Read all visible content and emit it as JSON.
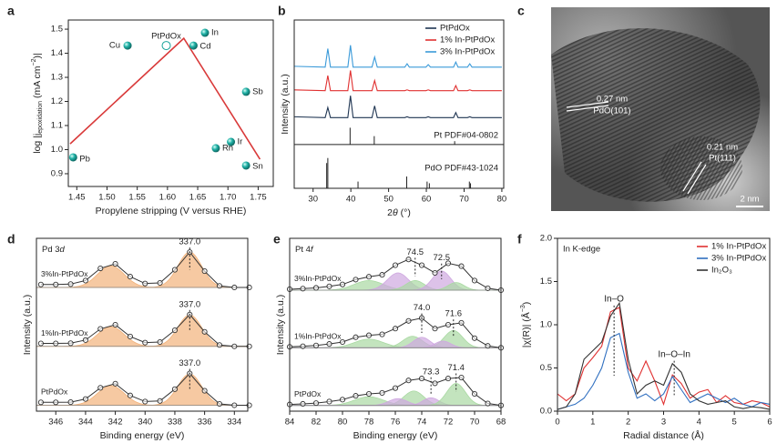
{
  "chart_data": [
    {
      "type": "scatter",
      "panel_label": "a",
      "xlabel": "Propylene stripping (V versus RHE)",
      "ylabel": [
        "log |j",
        "epoxidation",
        " (mA cm",
        "−2",
        ")|"
      ],
      "xlim": [
        1.436,
        1.775
      ],
      "ylim": [
        0.847,
        1.538
      ],
      "xticks": [
        1.45,
        {
          "value": 1.5,
          "label": "1.50"
        },
        1.55,
        {
          "value": 1.6,
          "label": "1.60"
        },
        1.65,
        {
          "value": 1.7,
          "label": "1.70"
        },
        1.75
      ],
      "yticks": [
        0.9,
        {
          "value": 1,
          "label": "1.0"
        },
        1.1,
        1.2,
        1.3,
        1.4,
        1.5
      ],
      "points": [
        {
          "label": "Pb",
          "x": 1.444,
          "y": 0.968,
          "marker": "filled"
        },
        {
          "label": "Cu",
          "x": 1.534,
          "y": 1.432,
          "marker": "filled"
        },
        {
          "label": "PtPdOx",
          "x": 1.598,
          "y": 1.432,
          "marker": "open"
        },
        {
          "label": "Cd",
          "x": 1.643,
          "y": 1.432,
          "marker": "filled"
        },
        {
          "label": "In",
          "x": 1.662,
          "y": 1.485,
          "marker": "filled"
        },
        {
          "label": "Rh",
          "x": 1.68,
          "y": 1.006,
          "marker": "filled"
        },
        {
          "label": "Ir",
          "x": 1.705,
          "y": 1.032,
          "marker": "filled"
        },
        {
          "label": "Sb",
          "x": 1.73,
          "y": 1.24,
          "marker": "filled"
        },
        {
          "label": "Sn",
          "x": 1.73,
          "y": 0.934,
          "marker": "filled"
        }
      ],
      "point_color": "#17a39a",
      "trend": {
        "x": [
          1.439,
          1.627,
          1.753
        ],
        "values": [
          1.024,
          1.462,
          0.96
        ],
        "color": "#d93a3a"
      }
    },
    {
      "type": "line",
      "panel_label": "b",
      "xlabel": [
        "2",
        "θ",
        " (°)"
      ],
      "ylabel": "Intensity (a.u.)",
      "xlim": [
        25,
        80.5
      ],
      "ylim": [
        0,
        10
      ],
      "xticks": [
        30,
        40,
        50,
        60,
        70,
        80
      ],
      "legend": "upper right",
      "x": [
        25,
        33.2,
        33.9,
        34.6,
        39.2,
        39.9,
        40.6,
        45.6,
        46.3,
        47,
        54.3,
        54.9,
        55.5,
        59.9,
        60.5,
        61.1,
        67.2,
        67.8,
        68.4,
        70.9,
        71.5,
        72.1,
        80
      ],
      "series": [
        {
          "name": "PtPdOx",
          "color": "#1f3552",
          "values": [
            4.25,
            4.2,
            4.8,
            4.2,
            4.2,
            5.5,
            4.2,
            4.2,
            4.9,
            4.2,
            4.2,
            4.25,
            4.2,
            4.2,
            4.25,
            4.2,
            4.2,
            4.5,
            4.2,
            4.2,
            4.25,
            4.2,
            4.2
          ]
        },
        {
          "name": "1% In-PtPdOx",
          "color": "#e03030",
          "values": [
            5.85,
            5.8,
            6.7,
            5.8,
            5.8,
            7.0,
            5.8,
            5.8,
            6.4,
            5.8,
            5.8,
            5.85,
            5.8,
            5.8,
            5.85,
            5.8,
            5.8,
            6.1,
            5.8,
            5.8,
            5.85,
            5.8,
            5.8
          ]
        },
        {
          "name": "3% In-PtPdOx",
          "color": "#3a9ad9",
          "values": [
            7.25,
            7.2,
            8.3,
            7.2,
            7.2,
            8.5,
            7.2,
            7.2,
            7.8,
            7.2,
            7.2,
            7.4,
            7.2,
            7.2,
            7.35,
            7.2,
            7.2,
            7.5,
            7.2,
            7.2,
            7.4,
            7.2,
            7.2
          ]
        }
      ],
      "references": [
        {
          "name": "Pt PDF#04-0802",
          "baseline": 2.6,
          "x": [
            39.8,
            46.2,
            67.5
          ],
          "values": [
            3.6,
            3.1,
            2.8
          ]
        },
        {
          "name": "PdO PDF#43-1024",
          "baseline": 0,
          "x": [
            33.6,
            33.9,
            41.9,
            54.8,
            60.2,
            60.8,
            71.4,
            71.7
          ],
          "values": [
            1.5,
            1.8,
            0.4,
            0.7,
            0.4,
            0.3,
            0.4,
            0.3
          ]
        }
      ]
    },
    {
      "type": "image",
      "panel_label": "c",
      "annotations": [
        "0.27 nm",
        "PdO(101)",
        "0.21 nm",
        "Pt(111)",
        "2 nm"
      ]
    },
    {
      "type": "spectrum",
      "panel_label": "d",
      "title": [
        "Pd 3",
        "d"
      ],
      "xlabel": "Binding energy (eV)",
      "ylabel": "Intensity (a.u.)",
      "xlim": [
        347.3,
        333.1
      ],
      "ylim": [
        0,
        8.8
      ],
      "xticks": [
        346,
        344,
        342,
        340,
        338,
        336,
        334
      ],
      "x": [
        347,
        346,
        345,
        344,
        343,
        342,
        341,
        340,
        339,
        338,
        337,
        336,
        335,
        334,
        333
      ],
      "series": [
        {
          "name": "3%In-PtPdOx",
          "color": "#333333",
          "baseline": 6.3,
          "values": [
            6.45,
            6.45,
            6.47,
            6.65,
            7.27,
            7.5,
            6.85,
            6.5,
            6.53,
            7.2,
            8.1,
            7.13,
            6.38,
            6.3,
            6.3
          ],
          "components": [
            {
              "center": 342.3,
              "height": 1.1,
              "width": 0.9,
              "color": "#f2b27a"
            },
            {
              "center": 337.0,
              "height": 1.8,
              "width": 0.8,
              "color": "#f2b27a"
            }
          ],
          "peak_labels": [
            {
              "value": 337.0,
              "label": "337.0"
            }
          ]
        },
        {
          "name": "1%In-PtPdOx",
          "color": "#333333",
          "baseline": 3.3,
          "values": [
            3.45,
            3.45,
            3.46,
            3.62,
            4.19,
            4.4,
            3.8,
            3.49,
            3.52,
            4.12,
            4.92,
            4.04,
            3.37,
            3.3,
            3.3
          ],
          "components": [
            {
              "center": 342.3,
              "height": 1.0,
              "width": 0.9,
              "color": "#f2b27a"
            },
            {
              "center": 337.0,
              "height": 1.6,
              "width": 0.8,
              "color": "#f2b27a"
            }
          ],
          "peak_labels": [
            {
              "value": 337.0,
              "label": "337.0"
            }
          ]
        },
        {
          "name": "PtPdOx",
          "color": "#333333",
          "baseline": 0.3,
          "values": [
            0.45,
            0.45,
            0.46,
            0.62,
            1.19,
            1.4,
            0.8,
            0.49,
            0.52,
            1.12,
            1.92,
            1.04,
            0.37,
            0.3,
            0.3
          ],
          "components": [
            {
              "center": 342.3,
              "height": 1.0,
              "width": 0.9,
              "color": "#f2b27a"
            },
            {
              "center": 337.0,
              "height": 1.6,
              "width": 0.8,
              "color": "#f2b27a"
            }
          ],
          "peak_labels": [
            {
              "value": 337.0,
              "label": "337.0"
            }
          ]
        }
      ]
    },
    {
      "type": "spectrum",
      "panel_label": "e",
      "title": [
        "Pt 4",
        "f"
      ],
      "xlabel": "Binding energy (eV)",
      "ylabel": "Intensity (a.u.)",
      "xlim": [
        84,
        68
      ],
      "ylim": [
        0,
        9
      ],
      "xticks": [
        84,
        82,
        80,
        78,
        76,
        74,
        72,
        70,
        68
      ],
      "x": [
        84,
        83,
        82,
        81,
        80,
        79,
        78,
        77,
        76,
        75,
        74,
        73,
        72,
        71,
        70,
        69,
        68
      ],
      "series": [
        {
          "name": "3%In-PtPdOx",
          "color": "#333333",
          "baseline": 6.3,
          "values": [
            6.35,
            6.38,
            6.42,
            6.5,
            6.6,
            6.85,
            7.0,
            7.1,
            7.6,
            7.9,
            7.6,
            7.2,
            7.7,
            7.55,
            6.8,
            6.4,
            6.3
          ],
          "components": [
            {
              "center": 78.0,
              "height": 0.5,
              "width": 1.1,
              "color": "#a9d9a2"
            },
            {
              "center": 75.8,
              "height": 0.9,
              "width": 0.8,
              "color": "#cfa8e0"
            },
            {
              "center": 74.5,
              "height": 0.5,
              "width": 0.7,
              "color": "#a9d9a2"
            },
            {
              "center": 72.5,
              "height": 1.0,
              "width": 0.7,
              "color": "#cfa8e0"
            },
            {
              "center": 71.4,
              "height": 0.4,
              "width": 0.6,
              "color": "#a9d9a2"
            }
          ],
          "peak_labels": [
            {
              "value": 74.5,
              "label": "74.5"
            },
            {
              "value": 72.5,
              "label": "72.5"
            }
          ]
        },
        {
          "name": "1%In-PtPdOx",
          "color": "#333333",
          "baseline": 3.3,
          "values": [
            3.35,
            3.38,
            3.42,
            3.5,
            3.6,
            3.85,
            3.95,
            4.0,
            4.3,
            4.7,
            4.85,
            4.3,
            4.5,
            4.6,
            3.8,
            3.4,
            3.3
          ],
          "components": [
            {
              "center": 78.0,
              "height": 0.45,
              "width": 1.1,
              "color": "#a9d9a2"
            },
            {
              "center": 74.7,
              "height": 0.6,
              "width": 0.75,
              "color": "#a9d9a2"
            },
            {
              "center": 74.0,
              "height": 0.55,
              "width": 0.65,
              "color": "#cfa8e0"
            },
            {
              "center": 71.6,
              "height": 0.9,
              "width": 0.7,
              "color": "#a9d9a2"
            },
            {
              "center": 72.4,
              "height": 0.35,
              "width": 0.6,
              "color": "#cfa8e0"
            }
          ],
          "peak_labels": [
            {
              "value": 74.0,
              "label": "74.0"
            },
            {
              "value": 71.6,
              "label": "71.6"
            }
          ]
        },
        {
          "name": "PtPdOx",
          "color": "#333333",
          "baseline": 0.3,
          "values": [
            0.35,
            0.38,
            0.42,
            0.5,
            0.6,
            0.8,
            0.9,
            0.95,
            1.2,
            1.6,
            1.7,
            1.45,
            1.7,
            1.75,
            0.9,
            0.4,
            0.3
          ],
          "components": [
            {
              "center": 78.0,
              "height": 0.45,
              "width": 1.1,
              "color": "#a9d9a2"
            },
            {
              "center": 74.6,
              "height": 0.75,
              "width": 0.75,
              "color": "#a9d9a2"
            },
            {
              "center": 73.3,
              "height": 0.4,
              "width": 0.6,
              "color": "#cfa8e0"
            },
            {
              "center": 71.4,
              "height": 1.15,
              "width": 0.7,
              "color": "#a9d9a2"
            },
            {
              "center": 75.8,
              "height": 0.35,
              "width": 0.7,
              "color": "#cfa8e0"
            }
          ],
          "peak_labels": [
            {
              "value": 73.3,
              "label": "73.3"
            },
            {
              "value": 71.4,
              "label": "71.4"
            }
          ]
        }
      ]
    },
    {
      "type": "line",
      "panel_label": "f",
      "title": "In K-edge",
      "xlabel": "Radial distance (Å)",
      "ylabel": [
        "|χ(R)| (Å",
        "−3",
        ")"
      ],
      "xlim": [
        0,
        6
      ],
      "ylim": [
        0,
        2
      ],
      "xticks": [
        0,
        1,
        2,
        3,
        4,
        5,
        6
      ],
      "yticks": [
        {
          "value": 0,
          "label": "0.0"
        },
        0.5,
        {
          "value": 1,
          "label": "1.0"
        },
        1.5,
        {
          "value": 2,
          "label": "2.0"
        }
      ],
      "legend": "upper right",
      "x": [
        0,
        0.25,
        0.5,
        0.75,
        1,
        1.25,
        1.5,
        1.75,
        2,
        2.25,
        2.5,
        2.75,
        3,
        3.25,
        3.5,
        3.75,
        4,
        4.25,
        4.5,
        4.75,
        5,
        5.25,
        5.5,
        5.75,
        6
      ],
      "series": [
        {
          "name": "1% In-PtPdOx",
          "color": "#e03030",
          "values": [
            0.2,
            0.12,
            0.2,
            0.5,
            0.62,
            0.75,
            1.15,
            1.2,
            0.5,
            0.35,
            0.58,
            0.35,
            0.08,
            0.42,
            0.32,
            0.15,
            0.22,
            0.25,
            0.1,
            0.18,
            0.1,
            0.08,
            0.12,
            0.1,
            0.05
          ]
        },
        {
          "name": "3% In-PtPdOx",
          "color": "#2f6fc0",
          "values": [
            0.02,
            0.05,
            0.08,
            0.15,
            0.3,
            0.5,
            0.85,
            0.9,
            0.45,
            0.15,
            0.2,
            0.12,
            0.2,
            0.4,
            0.25,
            0.1,
            0.15,
            0.2,
            0.15,
            0.1,
            0.15,
            0.08,
            0.05,
            0.1,
            0.08
          ]
        },
        {
          "name": "In₂O₃",
          "color": "#333333",
          "values": [
            0.02,
            0.05,
            0.2,
            0.6,
            0.7,
            0.8,
            1.1,
            1.25,
            0.6,
            0.2,
            0.3,
            0.35,
            0.3,
            0.55,
            0.45,
            0.2,
            0.12,
            0.08,
            0.1,
            0.12,
            0.05,
            0.03,
            0.05,
            0.04,
            0.02
          ]
        }
      ],
      "annotations": [
        {
          "value": 1.6,
          "label": "In–O"
        },
        {
          "value": 3.3,
          "label": "In–O–In"
        }
      ]
    }
  ]
}
